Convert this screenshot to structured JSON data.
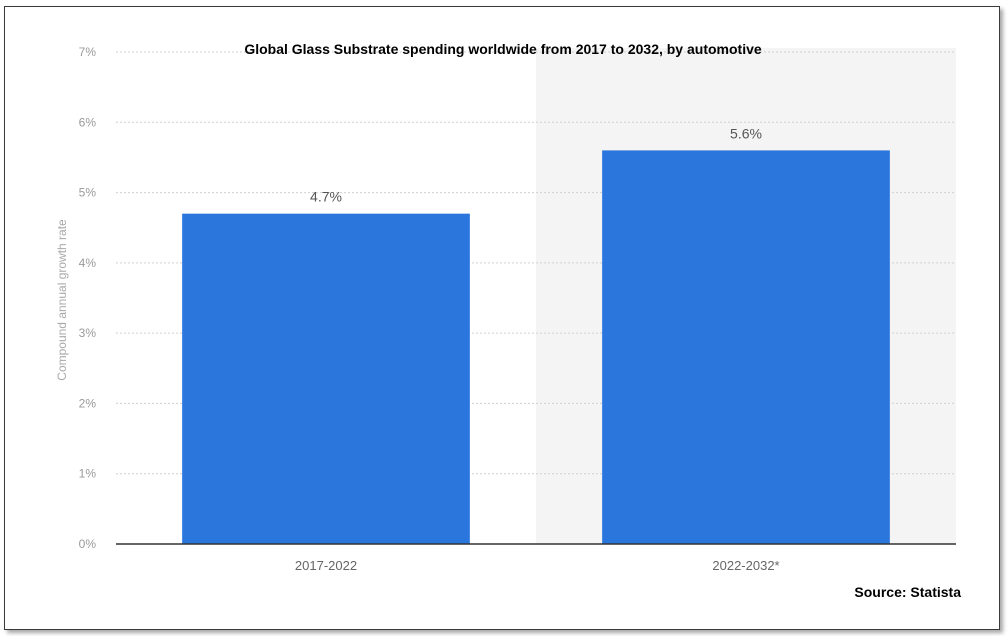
{
  "chart_data": {
    "type": "bar",
    "title": "Global Glass Substrate spending worldwide from 2017 to 2032, by automotive",
    "ylabel": "Compound annual growth rate",
    "xlabel": "",
    "categories": [
      "2017-2022",
      "2022-2032*"
    ],
    "values": [
      4.7,
      5.6
    ],
    "data_labels": [
      "4.7%",
      "5.6%"
    ],
    "ylim": [
      0,
      7
    ],
    "yticks": [
      "0%",
      "1%",
      "2%",
      "3%",
      "4%",
      "5%",
      "6%",
      "7%"
    ],
    "grid": "dotted horizontal",
    "bar_color": "#2a76dd",
    "forecast_shading_color": "#f4f4f4"
  },
  "source": "Source: Statista"
}
